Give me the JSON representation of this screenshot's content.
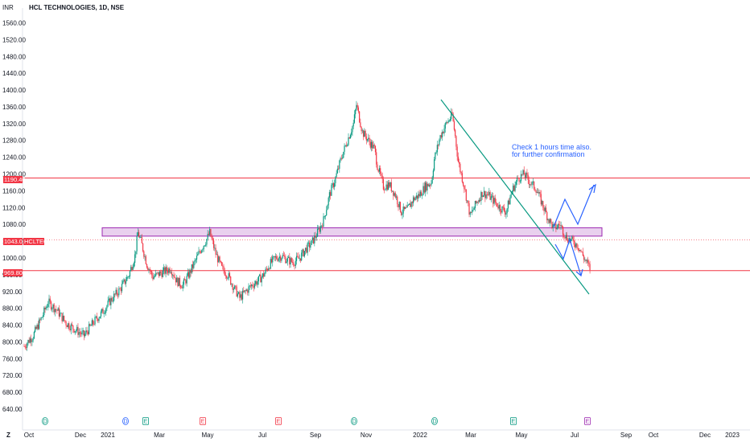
{
  "header": {
    "currency": "INR",
    "title": "HCL TECHNOLOGIES, 1D, NSE"
  },
  "chart_data": {
    "type": "candlestick",
    "title": "HCL TECHNOLOGIES, 1D, NSE",
    "ylabel": "INR",
    "ylim": [
      600,
      1580
    ],
    "y_ticks": [
      "1560.00",
      "1520.00",
      "1480.00",
      "1440.00",
      "1400.00",
      "1360.00",
      "1320.00",
      "1280.00",
      "1240.00",
      "1200.00",
      "1160.00",
      "1120.00",
      "1080.00",
      "1040.00",
      "1000.00",
      "960.00",
      "920.00",
      "880.00",
      "840.00",
      "800.00",
      "760.00",
      "720.00",
      "680.00",
      "640.00"
    ],
    "x_ticks": [
      "Oct",
      "Dec",
      "2021",
      "Mar",
      "May",
      "Jul",
      "Sep",
      "Nov",
      "2022",
      "Mar",
      "May",
      "Jul",
      "Sep",
      "Oct",
      "Dec",
      "2023"
    ],
    "grid": false,
    "price_path": [
      [
        0,
        790
      ],
      [
        3,
        815
      ],
      [
        6,
        860
      ],
      [
        8,
        895
      ],
      [
        11,
        875
      ],
      [
        14,
        845
      ],
      [
        17,
        830
      ],
      [
        20,
        815
      ],
      [
        23,
        845
      ],
      [
        26,
        870
      ],
      [
        29,
        900
      ],
      [
        32,
        925
      ],
      [
        35,
        960
      ],
      [
        37,
        1005
      ],
      [
        38,
        1060
      ],
      [
        39,
        1040
      ],
      [
        41,
        985
      ],
      [
        43,
        955
      ],
      [
        46,
        965
      ],
      [
        49,
        975
      ],
      [
        51,
        945
      ],
      [
        53,
        935
      ],
      [
        55,
        960
      ],
      [
        57,
        990
      ],
      [
        59,
        1020
      ],
      [
        61,
        1045
      ],
      [
        62,
        1060
      ],
      [
        64,
        1010
      ],
      [
        66,
        975
      ],
      [
        68,
        960
      ],
      [
        70,
        930
      ],
      [
        72,
        905
      ],
      [
        74,
        920
      ],
      [
        76,
        935
      ],
      [
        78,
        945
      ],
      [
        80,
        960
      ],
      [
        82,
        985
      ],
      [
        84,
        1000
      ],
      [
        86,
        1005
      ],
      [
        88,
        995
      ],
      [
        90,
        990
      ],
      [
        92,
        1000
      ],
      [
        94,
        1020
      ],
      [
        96,
        1035
      ],
      [
        98,
        1060
      ],
      [
        100,
        1090
      ],
      [
        102,
        1150
      ],
      [
        104,
        1190
      ],
      [
        106,
        1240
      ],
      [
        108,
        1280
      ],
      [
        110,
        1320
      ],
      [
        111,
        1365
      ],
      [
        113,
        1300
      ],
      [
        115,
        1280
      ],
      [
        117,
        1260
      ],
      [
        118,
        1220
      ],
      [
        120,
        1170
      ],
      [
        122,
        1175
      ],
      [
        124,
        1150
      ],
      [
        126,
        1110
      ],
      [
        128,
        1115
      ],
      [
        130,
        1140
      ],
      [
        132,
        1150
      ],
      [
        134,
        1170
      ],
      [
        136,
        1180
      ],
      [
        137,
        1235
      ],
      [
        139,
        1290
      ],
      [
        141,
        1320
      ],
      [
        143,
        1340
      ],
      [
        144,
        1290
      ],
      [
        145,
        1230
      ],
      [
        147,
        1170
      ],
      [
        149,
        1100
      ],
      [
        151,
        1130
      ],
      [
        153,
        1155
      ],
      [
        155,
        1150
      ],
      [
        157,
        1135
      ],
      [
        159,
        1120
      ],
      [
        161,
        1110
      ],
      [
        163,
        1160
      ],
      [
        165,
        1190
      ],
      [
        167,
        1200
      ],
      [
        169,
        1180
      ],
      [
        171,
        1165
      ],
      [
        173,
        1130
      ],
      [
        175,
        1095
      ],
      [
        177,
        1070
      ],
      [
        179,
        1080
      ],
      [
        181,
        1050
      ],
      [
        183,
        1040
      ],
      [
        185,
        1030
      ],
      [
        187,
        1000
      ],
      [
        189,
        975
      ]
    ],
    "series": [
      {
        "name": "HCLTECH",
        "last_value": "1043.00"
      }
    ],
    "horizontal_lines": [
      {
        "value": 1190.4,
        "label": "1190.40",
        "color": "#f23645"
      },
      {
        "value": 969.8,
        "label": "969.80",
        "color": "#f23645"
      }
    ],
    "current_price": {
      "value": 1043.0,
      "label": "1043.00",
      "ticker": "HCLTECH"
    },
    "zone": {
      "from": 1052,
      "to": 1072,
      "color": "#9c27b0"
    },
    "trendline": {
      "from": [
        142,
        1380
      ],
      "to": [
        196,
        920
      ],
      "color": "#089981"
    },
    "annotation": {
      "line1": "Check 1 hours time also.",
      "line2": "for further confirmation"
    },
    "events": [
      {
        "label": "D",
        "color": "#089981"
      },
      {
        "label": "D",
        "color": "#2962ff"
      },
      {
        "label": "E",
        "color": "#089981"
      },
      {
        "label": "E",
        "color": "#f23645"
      },
      {
        "label": "E",
        "color": "#f23645"
      },
      {
        "label": "D",
        "color": "#089981"
      },
      {
        "label": "D",
        "color": "#089981"
      },
      {
        "label": "E",
        "color": "#089981"
      },
      {
        "label": "E",
        "color": "#9c27b0"
      }
    ]
  },
  "colors": {
    "up": "#089981",
    "down": "#f23645",
    "axis_text": "#131722",
    "arrow": "#2962ff",
    "zone": "#9c27b0"
  },
  "footer": {
    "corner_label": "Z"
  }
}
